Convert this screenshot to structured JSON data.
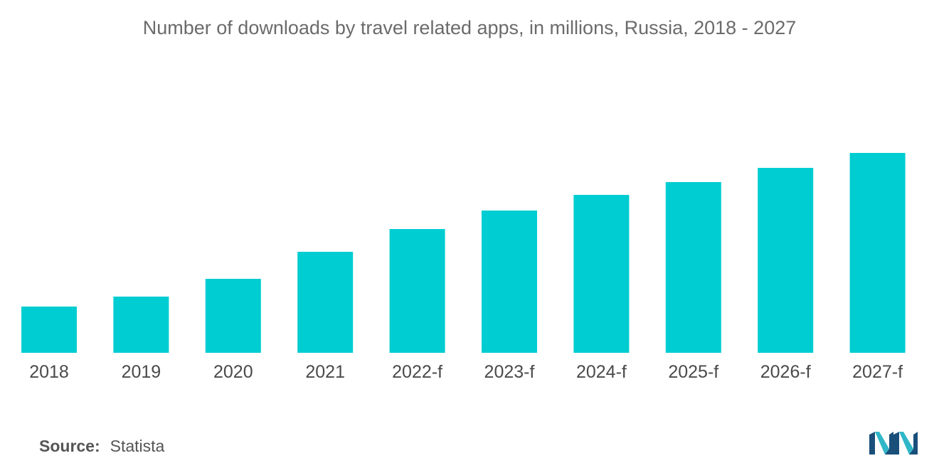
{
  "chart_data": {
    "type": "bar",
    "title": "Number of downloads by travel related apps, in millions, Russia,  2018 - 2027",
    "categories": [
      "2018",
      "2019",
      "2020",
      "2021",
      "2022-f",
      "2023-f",
      "2024-f",
      "2025-f",
      "2026-f",
      "2027-f"
    ],
    "values": [
      65,
      79,
      104,
      142,
      174,
      200,
      222,
      240,
      260,
      281
    ],
    "ylim": [
      0,
      300
    ],
    "xlabel": "",
    "ylabel": "",
    "grid": false,
    "legend": "none",
    "bar_color": "#00cdd1"
  },
  "footer": {
    "source_key": "Source:",
    "source_value": "Statista"
  },
  "logo": {
    "icon": "mordor-logo-icon",
    "color_a": "#1a4f7a",
    "color_b": "#2fb7c8"
  }
}
